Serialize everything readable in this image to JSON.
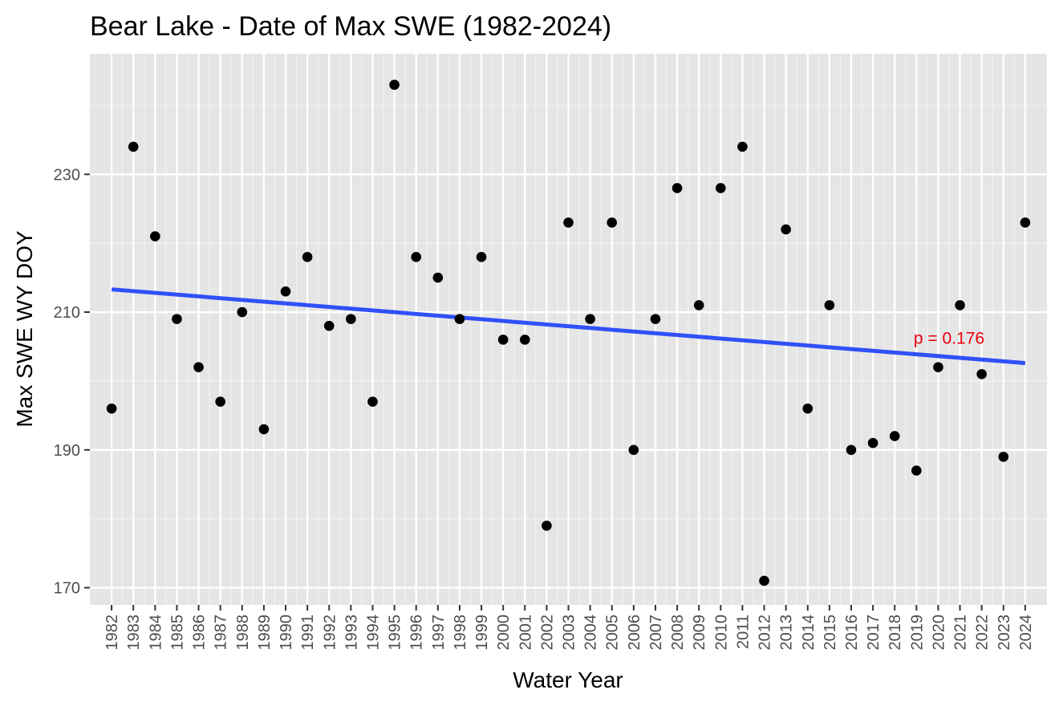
{
  "chart_data": {
    "type": "scatter",
    "title": "Bear Lake - Date of Max SWE (1982-2024)",
    "xlabel": "Water Year",
    "ylabel": "Max SWE WY DOY",
    "x": [
      1982,
      1983,
      1984,
      1985,
      1986,
      1987,
      1988,
      1989,
      1990,
      1991,
      1992,
      1993,
      1994,
      1995,
      1996,
      1997,
      1998,
      1999,
      2000,
      2001,
      2002,
      2003,
      2004,
      2005,
      2006,
      2007,
      2008,
      2009,
      2010,
      2011,
      2012,
      2013,
      2014,
      2015,
      2016,
      2017,
      2018,
      2019,
      2020,
      2021,
      2022,
      2023,
      2024
    ],
    "y": [
      196,
      234,
      221,
      209,
      202,
      197,
      210,
      193,
      213,
      218,
      208,
      209,
      197,
      243,
      218,
      215,
      209,
      218,
      206,
      206,
      179,
      223,
      209,
      223,
      190,
      209,
      228,
      211,
      228,
      234,
      171,
      222,
      196,
      211,
      190,
      191,
      192,
      187,
      202,
      211,
      201,
      189,
      223
    ],
    "xlim": [
      1981.0,
      2025.0
    ],
    "ylim": [
      167.5,
      247.5
    ],
    "y_ticks": [
      170,
      190,
      210,
      230
    ],
    "x_tick_labels": [
      "1982",
      "1983",
      "1984",
      "1985",
      "1986",
      "1987",
      "1988",
      "1989",
      "1990",
      "1991",
      "1992",
      "1993",
      "1994",
      "1995",
      "1996",
      "1997",
      "1998",
      "1999",
      "2000",
      "2001",
      "2002",
      "2003",
      "2004",
      "2005",
      "2006",
      "2007",
      "2008",
      "2009",
      "2010",
      "2011",
      "2012",
      "2013",
      "2014",
      "2015",
      "2016",
      "2017",
      "2018",
      "2019",
      "2020",
      "2021",
      "2022",
      "2023",
      "2024"
    ],
    "trend_line": {
      "x": [
        1982,
        2024
      ],
      "y": [
        213.3,
        202.6
      ],
      "color": "#3050f8"
    },
    "annotation": {
      "text": "p = 0.176",
      "x": 2020.5,
      "y": 206.2,
      "color": "#e8000b"
    },
    "grid": true,
    "panel_color": "#e5e5e5",
    "point_color": "#000000"
  }
}
